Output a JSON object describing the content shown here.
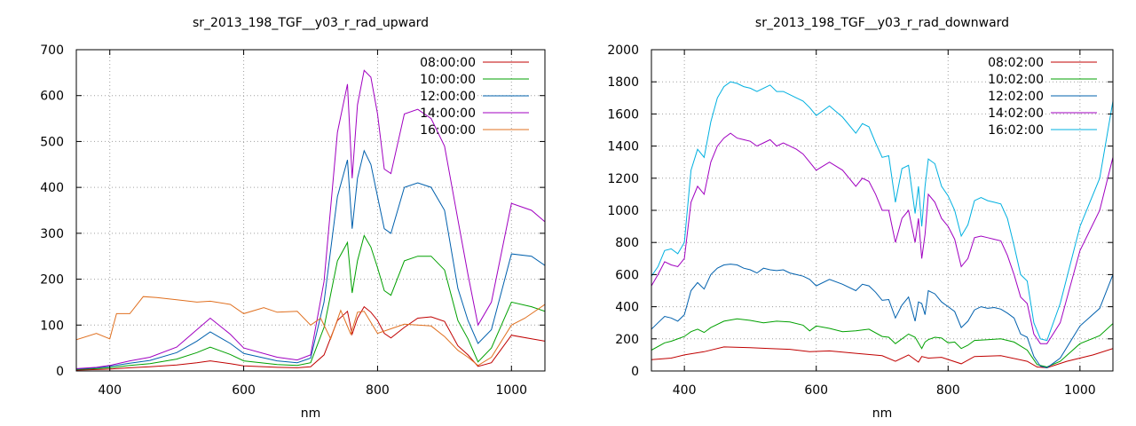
{
  "chart_data": [
    {
      "type": "line",
      "title": "sr_2013_198_TGF__y03_r_rad_upward",
      "xlabel": "nm",
      "ylabel": "",
      "xlim": [
        350,
        1050
      ],
      "ylim": [
        0,
        700
      ],
      "xticks": [
        400,
        600,
        800,
        1000
      ],
      "yticks": [
        0,
        100,
        200,
        300,
        400,
        500,
        600,
        700
      ],
      "grid": true,
      "legend_position": "top-right",
      "series": [
        {
          "name": "08:00:00",
          "color": "#c00000",
          "x": [
            350,
            380,
            400,
            430,
            460,
            500,
            530,
            550,
            580,
            600,
            650,
            680,
            700,
            720,
            740,
            755,
            762,
            770,
            780,
            790,
            800,
            810,
            820,
            840,
            860,
            880,
            900,
            920,
            935,
            950,
            970,
            1000,
            1030,
            1050
          ],
          "y": [
            2,
            3,
            4,
            7,
            9,
            13,
            18,
            22,
            16,
            11,
            8,
            7,
            9,
            35,
            110,
            130,
            80,
            115,
            140,
            128,
            110,
            82,
            72,
            95,
            115,
            118,
            108,
            55,
            35,
            10,
            18,
            78,
            70,
            65
          ]
        },
        {
          "name": "10:00:00",
          "color": "#00a000",
          "x": [
            350,
            380,
            400,
            430,
            460,
            500,
            530,
            550,
            580,
            600,
            650,
            680,
            700,
            720,
            740,
            755,
            762,
            770,
            780,
            790,
            800,
            810,
            820,
            840,
            860,
            880,
            900,
            920,
            935,
            950,
            970,
            1000,
            1030,
            1050
          ],
          "y": [
            3,
            5,
            7,
            12,
            16,
            26,
            40,
            52,
            36,
            22,
            14,
            12,
            18,
            95,
            240,
            280,
            170,
            240,
            295,
            270,
            225,
            175,
            165,
            240,
            250,
            250,
            220,
            110,
            70,
            20,
            50,
            150,
            140,
            130
          ]
        },
        {
          "name": "12:00:00",
          "color": "#0060ad",
          "x": [
            350,
            380,
            400,
            430,
            460,
            500,
            530,
            550,
            580,
            600,
            650,
            680,
            700,
            720,
            740,
            755,
            762,
            770,
            780,
            790,
            800,
            810,
            820,
            840,
            860,
            880,
            900,
            920,
            935,
            950,
            970,
            1000,
            1030,
            1050
          ],
          "y": [
            4,
            7,
            10,
            17,
            23,
            40,
            65,
            85,
            60,
            38,
            22,
            18,
            28,
            150,
            380,
            460,
            310,
            420,
            480,
            450,
            380,
            310,
            300,
            400,
            410,
            400,
            350,
            180,
            110,
            60,
            90,
            255,
            250,
            230
          ]
        },
        {
          "name": "14:00:00",
          "color": "#a000c0",
          "x": [
            350,
            380,
            400,
            430,
            460,
            500,
            530,
            550,
            580,
            600,
            650,
            680,
            700,
            720,
            740,
            755,
            762,
            770,
            780,
            790,
            800,
            810,
            820,
            840,
            860,
            880,
            900,
            920,
            935,
            950,
            970,
            1000,
            1030,
            1050
          ],
          "y": [
            5,
            8,
            12,
            22,
            30,
            52,
            90,
            115,
            80,
            50,
            30,
            24,
            35,
            195,
            520,
            625,
            420,
            580,
            655,
            640,
            560,
            440,
            430,
            560,
            570,
            550,
            490,
            330,
            210,
            100,
            150,
            365,
            350,
            325
          ]
        },
        {
          "name": "16:00:00",
          "color": "#e07020",
          "x": [
            350,
            380,
            400,
            410,
            430,
            450,
            470,
            500,
            530,
            550,
            580,
            600,
            630,
            650,
            680,
            700,
            715,
            730,
            745,
            760,
            770,
            780,
            800,
            840,
            880,
            900,
            920,
            935,
            950,
            970,
            1000,
            1020,
            1050
          ],
          "y": [
            68,
            82,
            70,
            125,
            125,
            162,
            160,
            155,
            150,
            152,
            145,
            125,
            138,
            128,
            130,
            100,
            115,
            70,
            132,
            80,
            128,
            130,
            82,
            102,
            98,
            75,
            45,
            30,
            12,
            30,
            100,
            115,
            145
          ]
        }
      ]
    },
    {
      "type": "line",
      "title": "sr_2013_198_TGF__y03_r_rad_downward",
      "xlabel": "nm",
      "ylabel": "",
      "xlim": [
        350,
        1050
      ],
      "ylim": [
        0,
        2000
      ],
      "xticks": [
        400,
        600,
        800,
        1000
      ],
      "yticks": [
        0,
        200,
        400,
        600,
        800,
        1000,
        1200,
        1400,
        1600,
        1800,
        2000
      ],
      "grid": true,
      "legend_position": "top-right",
      "series": [
        {
          "name": "08:02:00",
          "color": "#c00000",
          "x": [
            350,
            380,
            400,
            430,
            460,
            500,
            530,
            560,
            590,
            620,
            660,
            700,
            720,
            740,
            755,
            760,
            770,
            790,
            820,
            840,
            880,
            920,
            935,
            950,
            980,
            1020,
            1050
          ],
          "y": [
            70,
            80,
            100,
            120,
            150,
            145,
            140,
            135,
            120,
            125,
            110,
            95,
            60,
            100,
            55,
            90,
            80,
            85,
            45,
            90,
            95,
            60,
            25,
            20,
            60,
            100,
            140
          ]
        },
        {
          "name": "10:02:00",
          "color": "#00a000",
          "x": [
            350,
            370,
            380,
            400,
            410,
            420,
            430,
            440,
            460,
            480,
            500,
            520,
            540,
            560,
            580,
            590,
            600,
            620,
            640,
            660,
            680,
            700,
            710,
            720,
            730,
            740,
            750,
            760,
            765,
            770,
            780,
            790,
            800,
            810,
            820,
            830,
            840,
            860,
            880,
            900,
            920,
            935,
            945,
            950,
            970,
            1000,
            1030,
            1050
          ],
          "y": [
            130,
            175,
            185,
            215,
            245,
            260,
            240,
            270,
            310,
            325,
            315,
            300,
            310,
            305,
            285,
            250,
            280,
            265,
            245,
            250,
            260,
            215,
            210,
            170,
            200,
            230,
            210,
            140,
            180,
            195,
            210,
            205,
            175,
            180,
            140,
            160,
            190,
            195,
            200,
            180,
            130,
            40,
            30,
            25,
            60,
            170,
            220,
            295
          ]
        },
        {
          "name": "12:02:00",
          "color": "#0060ad",
          "x": [
            350,
            360,
            370,
            380,
            390,
            400,
            410,
            420,
            430,
            440,
            450,
            460,
            470,
            480,
            490,
            500,
            510,
            520,
            530,
            540,
            550,
            560,
            570,
            580,
            590,
            600,
            620,
            640,
            660,
            670,
            680,
            690,
            700,
            710,
            720,
            730,
            740,
            750,
            755,
            760,
            765,
            770,
            780,
            790,
            800,
            810,
            820,
            830,
            840,
            850,
            860,
            870,
            880,
            890,
            900,
            910,
            920,
            930,
            940,
            950,
            970,
            1000,
            1030,
            1050
          ],
          "y": [
            260,
            300,
            340,
            330,
            310,
            350,
            500,
            550,
            510,
            600,
            640,
            660,
            665,
            660,
            640,
            630,
            610,
            640,
            630,
            625,
            630,
            610,
            600,
            590,
            570,
            530,
            570,
            540,
            500,
            540,
            530,
            490,
            440,
            445,
            330,
            410,
            460,
            310,
            430,
            420,
            350,
            500,
            480,
            430,
            400,
            370,
            270,
            310,
            380,
            400,
            390,
            395,
            385,
            360,
            330,
            230,
            210,
            90,
            30,
            20,
            80,
            280,
            390,
            600
          ]
        },
        {
          "name": "14:02:00",
          "color": "#a000c0",
          "x": [
            350,
            360,
            370,
            380,
            390,
            400,
            410,
            420,
            430,
            440,
            450,
            460,
            470,
            480,
            490,
            500,
            510,
            520,
            530,
            540,
            550,
            560,
            570,
            580,
            590,
            600,
            620,
            640,
            660,
            670,
            680,
            690,
            700,
            710,
            720,
            730,
            740,
            750,
            755,
            760,
            765,
            770,
            780,
            790,
            800,
            810,
            820,
            830,
            840,
            850,
            860,
            870,
            880,
            890,
            900,
            910,
            920,
            930,
            940,
            950,
            970,
            1000,
            1030,
            1050
          ],
          "y": [
            530,
            600,
            680,
            660,
            650,
            700,
            1050,
            1150,
            1100,
            1300,
            1400,
            1450,
            1480,
            1450,
            1440,
            1430,
            1400,
            1420,
            1440,
            1400,
            1420,
            1400,
            1380,
            1350,
            1300,
            1250,
            1300,
            1250,
            1150,
            1200,
            1180,
            1100,
            1000,
            1000,
            800,
            950,
            1000,
            800,
            950,
            700,
            850,
            1100,
            1050,
            950,
            900,
            820,
            650,
            700,
            830,
            840,
            830,
            820,
            810,
            720,
            600,
            460,
            420,
            230,
            170,
            170,
            300,
            750,
            1000,
            1330
          ]
        },
        {
          "name": "16:02:00",
          "color": "#00b0e0",
          "x": [
            350,
            360,
            370,
            380,
            390,
            400,
            410,
            420,
            430,
            440,
            450,
            460,
            470,
            480,
            490,
            500,
            510,
            520,
            530,
            540,
            550,
            560,
            570,
            580,
            590,
            600,
            620,
            640,
            660,
            670,
            680,
            690,
            700,
            710,
            720,
            730,
            740,
            750,
            755,
            760,
            765,
            770,
            780,
            790,
            800,
            810,
            820,
            830,
            840,
            850,
            860,
            870,
            880,
            890,
            900,
            910,
            920,
            930,
            940,
            950,
            970,
            1000,
            1030,
            1050
          ],
          "y": [
            590,
            650,
            750,
            760,
            730,
            800,
            1250,
            1380,
            1330,
            1550,
            1700,
            1770,
            1800,
            1790,
            1770,
            1760,
            1740,
            1760,
            1780,
            1740,
            1740,
            1720,
            1700,
            1680,
            1640,
            1590,
            1650,
            1580,
            1480,
            1540,
            1520,
            1420,
            1330,
            1340,
            1050,
            1260,
            1280,
            980,
            1150,
            900,
            1150,
            1320,
            1290,
            1150,
            1090,
            1000,
            840,
            910,
            1060,
            1080,
            1060,
            1050,
            1040,
            950,
            780,
            600,
            560,
            300,
            200,
            190,
            420,
            900,
            1200,
            1680
          ]
        }
      ]
    }
  ]
}
